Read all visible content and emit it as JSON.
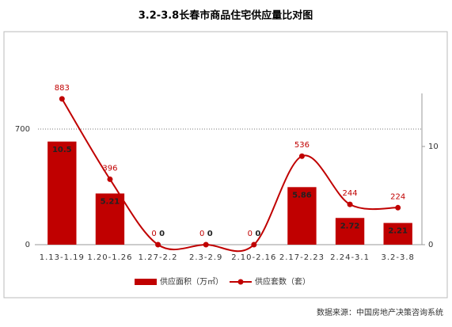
{
  "chart_data": {
    "type": "combo",
    "title": "3.2-3.8长春市商品住宅供应量比对图",
    "categories": [
      "1.13-1.19",
      "1.20-1.26",
      "1.27-2.2",
      "2.3-2.9",
      "2.10-2.16",
      "2.17-2.23",
      "2.24-3.1",
      "3.2-3.8"
    ],
    "series": [
      {
        "name": "供应面积（万㎡）",
        "type": "bar",
        "axis": "y2",
        "color": "#c00000",
        "values": [
          10.5,
          5.21,
          0,
          0,
          0,
          5.86,
          2.72,
          2.21
        ]
      },
      {
        "name": "供应套数（套）",
        "type": "line",
        "color": "#c00000",
        "values": [
          883,
          396,
          0,
          0,
          0,
          536,
          244,
          224
        ]
      }
    ],
    "ylim": [
      0,
      916
    ],
    "yticks": [
      0,
      700
    ],
    "y2lim": [
      0,
      15.4
    ],
    "y2ticks": [
      0,
      10
    ],
    "grid": true,
    "legend": "bottom",
    "source": "数据来源：中国房地产决策咨询系统"
  }
}
